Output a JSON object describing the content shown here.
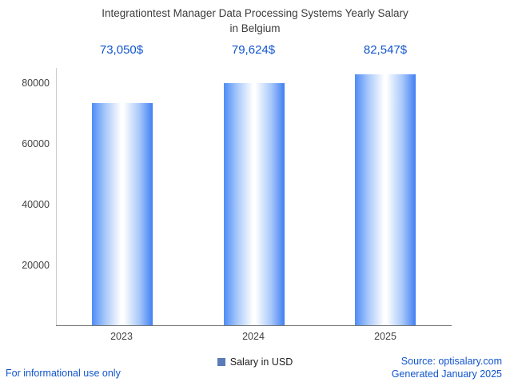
{
  "title_lines": [
    "Integrationtest Manager Data Processing Systems Yearly Salary",
    "in Belgium"
  ],
  "legend": {
    "label": "Salary in USD",
    "marker_color": "#5b7ab8"
  },
  "footer": {
    "left": "For informational use only",
    "source": "Source: optisalary.com",
    "generated": "Generated January 2025",
    "link_color": "#1155cc"
  },
  "chart_data": {
    "type": "bar",
    "title": "Integrationtest Manager Data Processing Systems Yearly Salary in Belgium",
    "categories": [
      "2023",
      "2024",
      "2025"
    ],
    "series": [
      {
        "name": "Salary in USD",
        "values": [
          73050,
          79624,
          82547
        ]
      }
    ],
    "value_labels": [
      "73,050$",
      "79,624$",
      "82,547$"
    ],
    "xlabel": "",
    "ylabel": "",
    "ylim": [
      0,
      85000
    ],
    "yticks": [
      20000,
      40000,
      60000,
      80000
    ],
    "ytick_labels": [
      "20000",
      "40000",
      "60000",
      "80000"
    ],
    "grid": false,
    "legend_position": "bottom",
    "annotation_color": "#1155cc",
    "bar_gradient": [
      "#4e8cf6",
      "#ffffff",
      "#417ff2"
    ]
  }
}
